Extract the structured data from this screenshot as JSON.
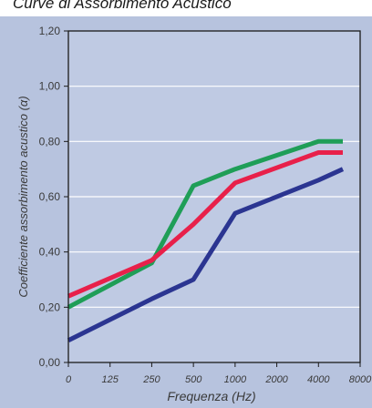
{
  "colors": {
    "panel_background": "#b7c3de",
    "plot_background": "#bfcae3",
    "frame": "#1a1a1a",
    "grid": "#ffffff",
    "axis_text": "#3a3a3a"
  },
  "chart_data": {
    "type": "line",
    "title": "Curve di Assorbimento Acustico",
    "xlabel": "Frequenza (Hz)",
    "ylabel": "Coefficiente assorbimento acustico (α)",
    "categories": [
      "0",
      "125",
      "250",
      "500",
      "1000",
      "2000",
      "4000",
      "8000"
    ],
    "y_tick_labels": [
      "0,00",
      "0,20",
      "0,40",
      "0,60",
      "0,80",
      "1,00",
      "1,20"
    ],
    "y_ticks": [
      0,
      0.2,
      0.4,
      0.6,
      0.8,
      1.0,
      1.2
    ],
    "ylim": [
      0,
      1.2
    ],
    "grid": true,
    "legend": "none",
    "x": [
      0,
      250,
      500,
      1000,
      4000,
      6000
    ],
    "series": [
      {
        "color": "#1f9e57",
        "values": [
          0.2,
          0.36,
          0.64,
          0.7,
          0.8,
          0.8
        ]
      },
      {
        "color": "#e8204a",
        "values": [
          0.24,
          0.37,
          0.5,
          0.65,
          0.76,
          0.76
        ]
      },
      {
        "color": "#2b3591",
        "values": [
          0.08,
          0.23,
          0.3,
          0.54,
          0.66,
          0.7
        ]
      }
    ]
  }
}
